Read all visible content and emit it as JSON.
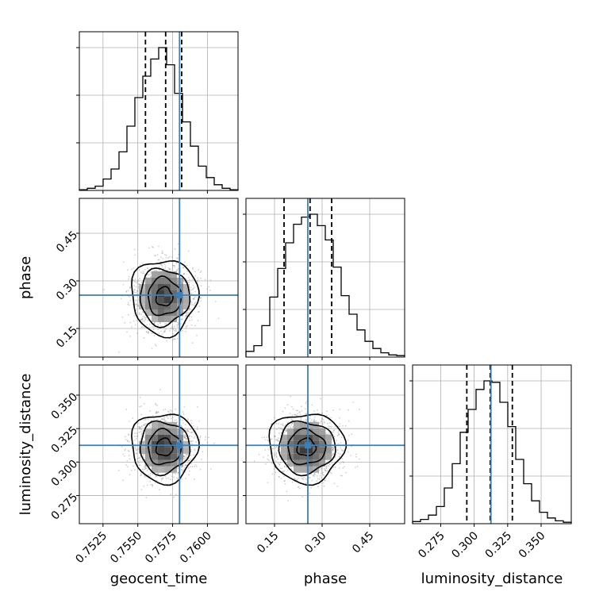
{
  "chart_data": {
    "type": "corner",
    "colors": {
      "truth": "#3b7fb8",
      "hist": "#000000",
      "grid": "#b0b0b0"
    },
    "truths": {
      "geocent_time": 0.758,
      "phase": 0.255,
      "luminosity_distance": 0.3125
    },
    "parameters": [
      {
        "name": "geocent_time",
        "label": "geocent_time",
        "range": [
          0.7508,
          0.7622
        ],
        "ticks": [
          0.7525,
          0.755,
          0.7575,
          0.76
        ],
        "tick_labels": [
          "0.7525",
          "0.7550",
          "0.7575",
          "0.7600"
        ],
        "quantiles": [
          0.75555,
          0.757,
          0.75815
        ],
        "hist": [
          0.5,
          1.5,
          3,
          8,
          15,
          27,
          45,
          65,
          80,
          92,
          100,
          88,
          68,
          48,
          31,
          17,
          9,
          4,
          1.5,
          0.5
        ],
        "mean": 0.7569,
        "std": 0.0011
      },
      {
        "name": "phase",
        "label": "phase",
        "range": [
          0.06,
          0.56
        ],
        "ticks": [
          0.15,
          0.3,
          0.45
        ],
        "tick_labels": [
          "0.15",
          "0.30",
          "0.45"
        ],
        "quantiles": [
          0.18,
          0.262,
          0.33
        ],
        "hist": [
          4,
          8,
          22,
          42,
          62,
          80,
          93,
          98,
          100,
          92,
          82,
          63,
          43,
          30,
          19,
          11,
          6,
          3,
          1.5,
          1
        ],
        "mean": 0.25,
        "std": 0.055
      },
      {
        "name": "luminosity_distance",
        "label": "luminosity_distance",
        "range": [
          0.254,
          0.3725
        ],
        "ticks": [
          0.275,
          0.3,
          0.325,
          0.35
        ],
        "tick_labels": [
          "0.275",
          "0.300",
          "0.325",
          "0.350"
        ],
        "quantiles": [
          0.2945,
          0.312,
          0.3285
        ],
        "hist": [
          1.5,
          3,
          6,
          12,
          25,
          42,
          64,
          80,
          94,
          100,
          99,
          85,
          68,
          45,
          28,
          16,
          8,
          4,
          2,
          1
        ],
        "mean": 0.311,
        "std": 0.012
      }
    ],
    "grid": true
  }
}
